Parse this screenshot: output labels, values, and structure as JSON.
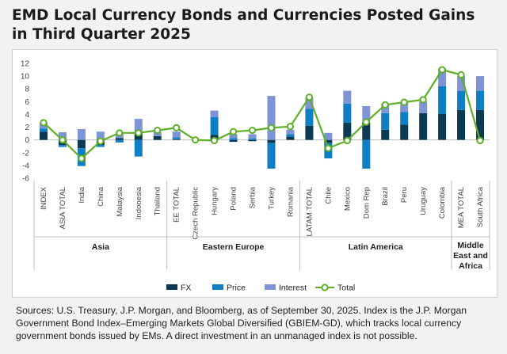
{
  "title_line1": "EMD Local Currency Bonds and Currencies Posted Gains",
  "title_line2": "in Third Quarter 2025",
  "source": "Sources: U.S. Treasury, J.P. Morgan, and Bloomberg, as of September 30, 2025. Index is the J.P. Morgan Government Bond Index–Emerging Markets Global Diversified (GBIEM-GD), which tracks local currency government bonds issued by EMs. A direct investment in an unmanaged index is not possible.",
  "colors": {
    "fx": "#0b3a52",
    "price": "#0f7ec4",
    "interest": "#7e94d6",
    "total": "#5fb027",
    "axis": "#bfbfbf"
  },
  "chart_data": {
    "type": "bar",
    "stacked": true,
    "ylim": [
      -6,
      12
    ],
    "yticks": [
      -6,
      -4,
      -2,
      0,
      2,
      4,
      6,
      8,
      10,
      12
    ],
    "categories": [
      "INDEX",
      "ASIA TOTAL",
      "India",
      "China",
      "Malaysia",
      "Indonesia",
      "Thailand",
      "EE TOTAL",
      "Czech Republic",
      "Hungary",
      "Poland",
      "Serbia",
      "Turkey",
      "Romania",
      "LATAM TOTAL",
      "Chile",
      "Mexico",
      "Dom Rep",
      "Brazil",
      "Peru",
      "Uruguay",
      "Colombia",
      "MEA TOTAL",
      "South Africa"
    ],
    "series": [
      {
        "name": "FX",
        "values": [
          1.3,
          -0.8,
          -1.3,
          -0.8,
          0.3,
          1.0,
          0.6,
          0.1,
          0,
          0.8,
          -0.3,
          -0.2,
          -0.5,
          0.5,
          2.2,
          -0.5,
          2.7,
          2.7,
          1.6,
          2.4,
          4.2,
          4.1,
          4.7,
          4.7
        ]
      },
      {
        "name": "Price",
        "values": [
          0.5,
          -0.3,
          -2.8,
          -0.3,
          -0.4,
          -2.6,
          0,
          0.3,
          0,
          2.8,
          0.3,
          0.2,
          -4.0,
          0.4,
          2.7,
          -2.4,
          3.0,
          -4.5,
          2.6,
          2.0,
          0,
          4.3,
          3.0,
          3.0
        ]
      },
      {
        "name": "Interest",
        "values": [
          0.9,
          1.2,
          1.7,
          1.3,
          0.7,
          2.3,
          0.6,
          0.9,
          0,
          1.0,
          0.6,
          0.7,
          6.9,
          0.7,
          1.7,
          1.1,
          2.0,
          2.6,
          1.4,
          1.5,
          1.8,
          2.8,
          2.3,
          2.3
        ]
      },
      {
        "name": "Total",
        "values": [
          2.7,
          0,
          -2.9,
          -0.2,
          1.1,
          1.1,
          1.5,
          1.9,
          0,
          -0.1,
          1.3,
          1.5,
          1.9,
          2.1,
          6.7,
          -1.3,
          -0.1,
          2.8,
          5.5,
          5.9,
          6.3,
          11.0,
          10.2,
          -0.1
        ]
      }
    ],
    "groups": [
      {
        "label_lines": [
          "Asia"
        ],
        "start": 0,
        "end": 6
      },
      {
        "label_lines": [
          "Eastern Europe"
        ],
        "start": 7,
        "end": 13
      },
      {
        "label_lines": [
          "Latin America"
        ],
        "start": 14,
        "end": 21
      },
      {
        "label_lines": [
          "Middle",
          "East and",
          "Africa"
        ],
        "start": 22,
        "end": 23
      }
    ],
    "legend_position": "bottom-center",
    "grid": false
  }
}
